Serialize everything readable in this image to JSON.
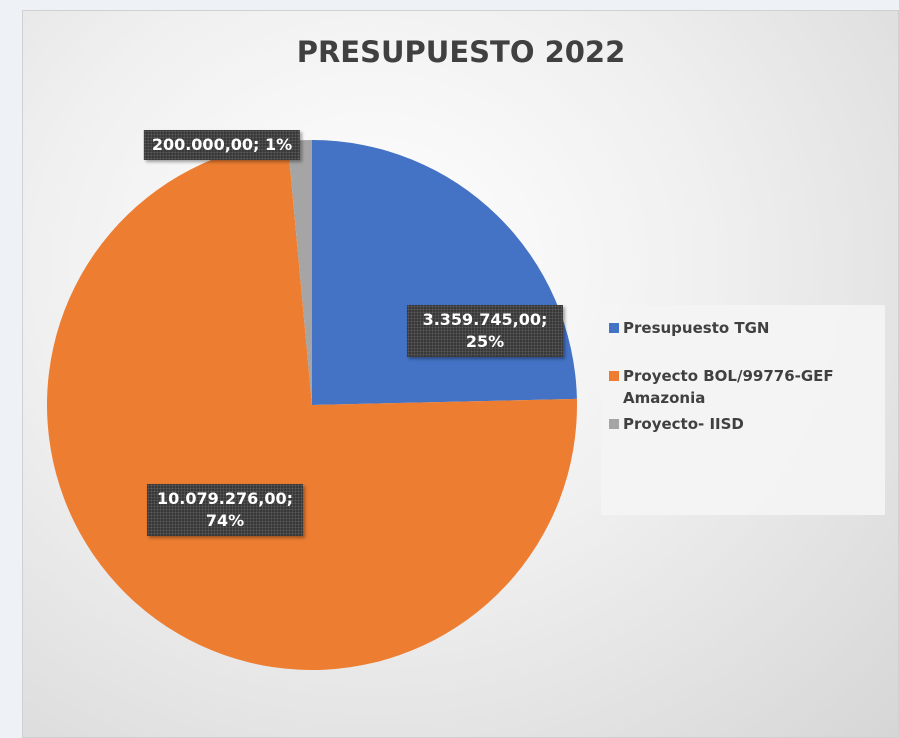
{
  "chart_data": {
    "type": "pie",
    "title": "PRESUPUESTO 2022",
    "categories": [
      "Presupuesto TGN",
      "Proyecto BOL/99776-GEF Amazonia",
      "Proyecto- IISD"
    ],
    "values": [
      3359745,
      10079276,
      200000
    ],
    "value_labels": [
      "3.359.745,00; 25%",
      "10.079.276,00; 74%",
      "200.000,00; 1%"
    ],
    "colors": [
      "#4472c4",
      "#ed7d31",
      "#a5a5a5"
    ],
    "legend": "right"
  }
}
